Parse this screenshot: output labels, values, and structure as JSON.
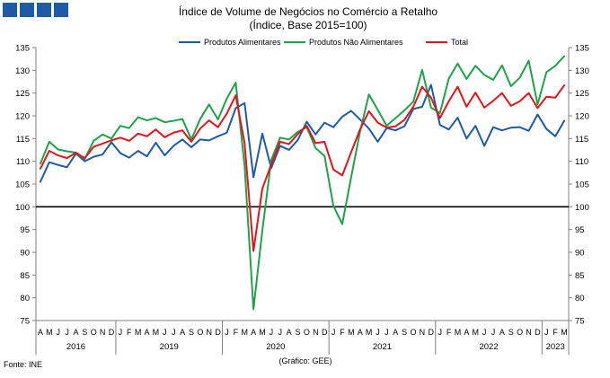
{
  "header": {
    "title": "Índice de Volume de Negócios no Comércio a Retalho",
    "subtitle": "(Índice, Base 2015=100)",
    "logo_squares": 4,
    "logo_color": "#1f5aa6"
  },
  "footer": {
    "source": "Fonte: INE",
    "credit": "(Gráfico: GEE)"
  },
  "chart_data": {
    "type": "line",
    "ylim": [
      75,
      135
    ],
    "yticks": [
      75,
      80,
      85,
      90,
      95,
      100,
      105,
      110,
      115,
      120,
      125,
      130,
      135
    ],
    "y_axis_both_sides": true,
    "reference_line": 100,
    "legend_position": "top",
    "grid": false,
    "month_letters": [
      "A",
      "M",
      "J",
      "J",
      "A",
      "S",
      "O",
      "N",
      "D",
      "J",
      "F",
      "M",
      "A",
      "M",
      "J",
      "J",
      "A",
      "S",
      "O",
      "N",
      "D",
      "J",
      "F",
      "M",
      "A",
      "M",
      "J",
      "J",
      "A",
      "S",
      "O",
      "N",
      "D",
      "J",
      "F",
      "M",
      "A",
      "M",
      "J",
      "J",
      "A",
      "S",
      "O",
      "N",
      "D",
      "J",
      "F",
      "M",
      "A",
      "M",
      "J",
      "J",
      "A",
      "S",
      "O",
      "N",
      "D",
      "J",
      "F",
      "M"
    ],
    "years": [
      {
        "label": "2016",
        "first_month_index": 0,
        "last_month_index": 8
      },
      {
        "label": "2019",
        "first_month_index": 9,
        "last_month_index": 20
      },
      {
        "label": "2020",
        "first_month_index": 21,
        "last_month_index": 32
      },
      {
        "label": "2021",
        "first_month_index": 33,
        "last_month_index": 44
      },
      {
        "label": "2022",
        "first_month_index": 45,
        "last_month_index": 56
      },
      {
        "label": "2023",
        "first_month_index": 57,
        "last_month_index": 59
      }
    ],
    "series": [
      {
        "name": "Produtos Alimentares",
        "color": "#1f5aa6",
        "values": [
          105.5,
          109.8,
          109.2,
          108.7,
          111.7,
          110.0,
          111.0,
          111.5,
          114.2,
          111.8,
          110.8,
          112.3,
          111.1,
          114.1,
          111.3,
          113.4,
          114.8,
          113.1,
          114.8,
          114.6,
          115.5,
          116.3,
          121.7,
          122.8,
          106.5,
          116.1,
          108.5,
          113.4,
          112.5,
          114.7,
          118.7,
          115.9,
          118.5,
          117.5,
          119.8,
          121.1,
          119.2,
          117.2,
          114.3,
          117.3,
          116.8,
          117.7,
          121.5,
          122.0,
          126.8,
          118.0,
          117.0,
          119.6,
          115.0,
          117.8,
          113.4,
          117.5,
          116.8,
          117.4,
          117.5,
          116.7,
          120.3,
          117.1,
          115.5,
          118.9
        ]
      },
      {
        "name": "Produtos Não Alimentares",
        "color": "#1ea24a",
        "values": [
          109.5,
          114.3,
          112.6,
          112.2,
          111.9,
          110.5,
          114.5,
          115.9,
          115.0,
          117.8,
          117.3,
          119.7,
          119.0,
          119.5,
          118.6,
          118.9,
          119.3,
          114.8,
          119.3,
          122.5,
          119.2,
          123.8,
          127.3,
          109.0,
          77.5,
          94.8,
          110.3,
          115.2,
          114.8,
          116.5,
          117.5,
          112.9,
          111.2,
          100.2,
          96.2,
          106.5,
          116.5,
          124.7,
          121.3,
          117.8,
          119.5,
          121.2,
          123.1,
          130.1,
          121.8,
          120.6,
          128.2,
          131.5,
          128.1,
          131.0,
          129.0,
          127.9,
          131.1,
          126.5,
          128.4,
          132.1,
          122.5,
          129.6,
          131.0,
          133.1
        ]
      },
      {
        "name": "Total",
        "color": "#e0161b",
        "values": [
          108.4,
          112.3,
          111.3,
          110.7,
          111.9,
          110.7,
          113.2,
          113.9,
          114.6,
          115.2,
          114.5,
          116.1,
          115.5,
          117.0,
          115.3,
          116.3,
          116.8,
          114.3,
          117.2,
          119.0,
          117.5,
          120.5,
          124.5,
          114.0,
          90.3,
          104.0,
          109.3,
          114.3,
          113.8,
          116.0,
          117.8,
          114.0,
          114.3,
          108.2,
          106.9,
          112.0,
          117.0,
          121.0,
          118.5,
          117.4,
          117.7,
          119.1,
          122.0,
          126.4,
          124.0,
          119.5,
          123.2,
          126.4,
          122.0,
          125.1,
          121.8,
          123.3,
          125.0,
          122.2,
          123.2,
          125.0,
          121.7,
          124.2,
          124.0,
          126.7
        ]
      }
    ]
  }
}
